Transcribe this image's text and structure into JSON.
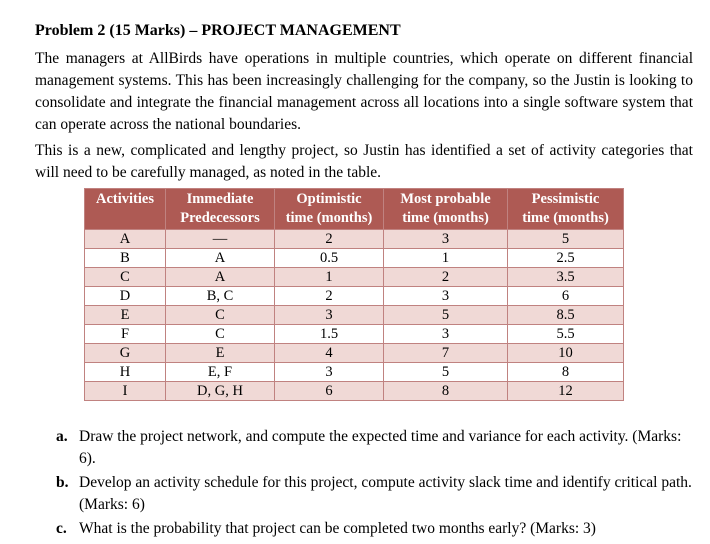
{
  "document": {
    "title": "Problem 2 (15 Marks) – PROJECT MANAGEMENT",
    "paragraphs": [
      "The managers at AllBirds have operations in multiple countries, which operate on different financial management systems. This has been increasingly challenging for the company, so the Justin is looking to consolidate and integrate the financial management across all locations into a single software system that can operate across the national boundaries.",
      "This is a new, complicated and lengthy project, so Justin has identified a set of activity categories that will need to be carefully managed, as noted in the table."
    ],
    "table": {
      "headers": [
        [
          "Activities"
        ],
        [
          "Immediate",
          "Predecessors"
        ],
        [
          "Optimistic",
          "time (months)"
        ],
        [
          "Most probable",
          "time (months)"
        ],
        [
          "Pessimistic",
          "time (months)"
        ]
      ],
      "rows": [
        [
          "A",
          "—",
          "2",
          "3",
          "5"
        ],
        [
          "B",
          "A",
          "0.5",
          "1",
          "2.5"
        ],
        [
          "C",
          "A",
          "1",
          "2",
          "3.5"
        ],
        [
          "D",
          "B, C",
          "2",
          "3",
          "6"
        ],
        [
          "E",
          "C",
          "3",
          "5",
          "8.5"
        ],
        [
          "F",
          "C",
          "1.5",
          "3",
          "5.5"
        ],
        [
          "G",
          "E",
          "4",
          "7",
          "10"
        ],
        [
          "H",
          "E, F",
          "3",
          "5",
          "8"
        ],
        [
          "I",
          "D, G, H",
          "6",
          "8",
          "12"
        ]
      ],
      "colors": {
        "header_bg": "#AE5A54",
        "header_text": "#FFFFFF",
        "row_bg": "#FFFFFF",
        "row_alt_bg": "#F0D9D6",
        "border": "#C08280"
      }
    },
    "questions": [
      {
        "label": "a.",
        "text": "Draw the project network, and compute the expected time and variance for each activity. (Marks: 6)."
      },
      {
        "label": "b.",
        "text": "Develop an activity schedule for this project, compute activity slack time and identify critical path. (Marks: 6)"
      },
      {
        "label": "c.",
        "text": "What is the probability that project can be completed two months early? (Marks: 3)"
      }
    ]
  }
}
